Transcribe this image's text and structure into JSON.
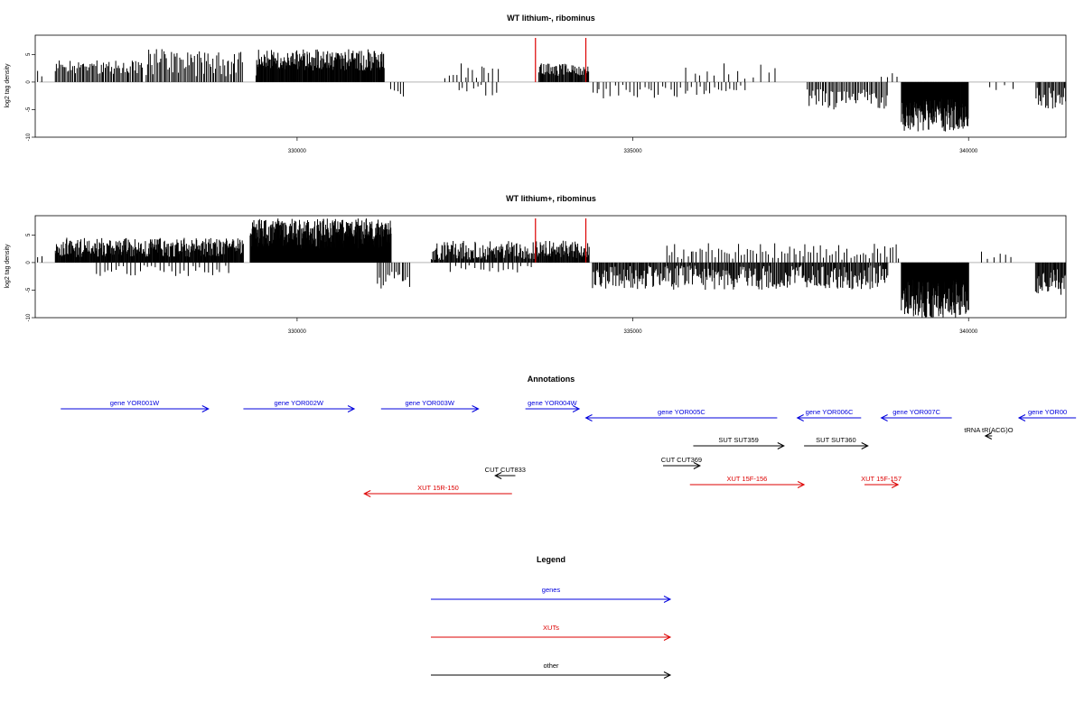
{
  "chart_data": [
    {
      "type": "bar",
      "title": "WT lithium-, ribominus",
      "ylabel": "log2 tag density",
      "xlim": [
        326100,
        341450
      ],
      "ylim": [
        -10,
        8.5
      ],
      "xticks": [
        330000,
        335000,
        340000
      ],
      "yticks": [
        -10,
        -5,
        0,
        5
      ],
      "ytick_labels": [
        "-10",
        "-5",
        "0",
        "5"
      ],
      "markers": [
        333550,
        334300
      ],
      "marker_color": "#dd0000",
      "bar_color": "#000000",
      "segments": [
        {
          "from": 326150,
          "to": 326200,
          "min": -2.5,
          "max": -1.0,
          "step": 50,
          "sign": -1
        },
        {
          "from": 326400,
          "to": 327700,
          "min": 1.5,
          "max": 4.0,
          "step": 20,
          "sign": 1
        },
        {
          "from": 327750,
          "to": 329200,
          "min": 1.0,
          "max": 6.0,
          "step": 22,
          "sign": 1
        },
        {
          "from": 329400,
          "to": 329500,
          "min": -2.0,
          "max": -1.0,
          "step": 40,
          "sign": -1
        },
        {
          "from": 329400,
          "to": 331300,
          "min": 2.0,
          "max": 6.0,
          "step": 9,
          "sign": 1
        },
        {
          "from": 331400,
          "to": 331600,
          "min": 1.0,
          "max": 3.0,
          "step": 45,
          "sign": -1
        },
        {
          "from": 332200,
          "to": 333000,
          "min": 0.5,
          "max": 3.5,
          "step": 60,
          "sign": 1
        },
        {
          "from": 332400,
          "to": 333000,
          "min": 0.5,
          "max": 2.5,
          "step": 70,
          "sign": -1
        },
        {
          "from": 333600,
          "to": 334350,
          "min": 1.0,
          "max": 3.5,
          "step": 12,
          "sign": 1
        },
        {
          "from": 334400,
          "to": 336700,
          "min": 0.5,
          "max": 3.0,
          "step": 55,
          "sign": -1
        },
        {
          "from": 335800,
          "to": 337200,
          "min": 0.5,
          "max": 3.5,
          "step": 110,
          "sign": 1
        },
        {
          "from": 337600,
          "to": 338800,
          "min": 1.0,
          "max": 5.0,
          "step": 22,
          "sign": -1
        },
        {
          "from": 338700,
          "to": 339000,
          "min": 0.5,
          "max": 2.0,
          "step": 80,
          "sign": 1
        },
        {
          "from": 339000,
          "to": 340000,
          "min": 3.0,
          "max": 9.0,
          "step": 6,
          "sign": -1
        },
        {
          "from": 340300,
          "to": 340700,
          "min": 0.5,
          "max": 1.5,
          "step": 120,
          "sign": -1
        },
        {
          "from": 341000,
          "to": 341450,
          "min": 1.0,
          "max": 5.0,
          "step": 18,
          "sign": -1
        }
      ]
    },
    {
      "type": "bar",
      "title": "WT lithium+, ribominus",
      "ylabel": "log2 tag density",
      "xlim": [
        326100,
        341450
      ],
      "ylim": [
        -10,
        8.5
      ],
      "xticks": [
        330000,
        335000,
        340000
      ],
      "yticks": [
        -10,
        -5,
        0,
        5
      ],
      "ytick_labels": [
        "-10",
        "-5",
        "0",
        "5"
      ],
      "markers": [
        333550,
        334300
      ],
      "marker_color": "#dd0000",
      "bar_color": "#000000",
      "segments": [
        {
          "from": 326150,
          "to": 326200,
          "min": -1.5,
          "max": -0.5,
          "step": 50,
          "sign": -1
        },
        {
          "from": 326400,
          "to": 329200,
          "min": 1.0,
          "max": 4.5,
          "step": 9,
          "sign": 1
        },
        {
          "from": 327000,
          "to": 329000,
          "min": 0.5,
          "max": 2.5,
          "step": 60,
          "sign": -1
        },
        {
          "from": 329300,
          "to": 331400,
          "min": 2.5,
          "max": 8.0,
          "step": 5,
          "sign": 1
        },
        {
          "from": 331200,
          "to": 331700,
          "min": 1.5,
          "max": 5.0,
          "step": 30,
          "sign": -1
        },
        {
          "from": 332000,
          "to": 333600,
          "min": 0.5,
          "max": 4.0,
          "step": 12,
          "sign": 1
        },
        {
          "from": 332300,
          "to": 333500,
          "min": 0.5,
          "max": 2.0,
          "step": 70,
          "sign": -1
        },
        {
          "from": 333600,
          "to": 334350,
          "min": 0.8,
          "max": 4.0,
          "step": 10,
          "sign": 1
        },
        {
          "from": 334400,
          "to": 338800,
          "min": 0.5,
          "max": 5.0,
          "step": 14,
          "sign": -1
        },
        {
          "from": 335500,
          "to": 339000,
          "min": 0.5,
          "max": 3.5,
          "step": 45,
          "sign": 1
        },
        {
          "from": 339000,
          "to": 340000,
          "min": 3.0,
          "max": 10.0,
          "step": 5,
          "sign": -1
        },
        {
          "from": 340200,
          "to": 340700,
          "min": 0.5,
          "max": 2.0,
          "step": 90,
          "sign": 1
        },
        {
          "from": 341000,
          "to": 341450,
          "min": 1.0,
          "max": 6.0,
          "step": 12,
          "sign": -1
        }
      ]
    }
  ],
  "annotations": {
    "title": "Annotations",
    "xlim": [
      326100,
      341450
    ],
    "colors": {
      "gene": "#0000dd",
      "xut": "#dd0000",
      "other": "#000000"
    },
    "items": [
      {
        "label": "gene YOR001W",
        "x1": 326480,
        "x2": 328680,
        "dir": 1,
        "row": 0,
        "kind": "gene"
      },
      {
        "label": "gene YOR002W",
        "x1": 329200,
        "x2": 330850,
        "dir": 1,
        "row": 0,
        "kind": "gene"
      },
      {
        "label": "gene YOR003W",
        "x1": 331250,
        "x2": 332700,
        "dir": 1,
        "row": 0,
        "kind": "gene"
      },
      {
        "label": "gene YOR004W",
        "x1": 333400,
        "x2": 334200,
        "dir": 1,
        "row": 0,
        "kind": "gene"
      },
      {
        "label": "gene YOR005C",
        "x1": 334300,
        "x2": 337150,
        "dir": -1,
        "row": 1,
        "kind": "gene"
      },
      {
        "label": "gene YOR006C",
        "x1": 337450,
        "x2": 338400,
        "dir": -1,
        "row": 1,
        "kind": "gene"
      },
      {
        "label": "gene YOR007C",
        "x1": 338700,
        "x2": 339750,
        "dir": -1,
        "row": 1,
        "kind": "gene"
      },
      {
        "label": "gene YOR00",
        "x1": 340750,
        "x2": 341600,
        "dir": -1,
        "row": 1,
        "kind": "gene"
      },
      {
        "label": "tRNA tR(ACG)O",
        "x1": 340250,
        "x2": 340350,
        "dir": -1,
        "row": 2,
        "kind": "other"
      },
      {
        "label": "SUT SUT359",
        "x1": 335900,
        "x2": 337250,
        "dir": 1,
        "row": 3,
        "kind": "other"
      },
      {
        "label": "SUT SUT360",
        "x1": 337550,
        "x2": 338500,
        "dir": 1,
        "row": 3,
        "kind": "other"
      },
      {
        "label": "CUT CUT369",
        "x1": 335450,
        "x2": 336000,
        "dir": 1,
        "row": 4,
        "kind": "other"
      },
      {
        "label": "CUT CUT833",
        "x1": 332950,
        "x2": 333250,
        "dir": -1,
        "row": 5,
        "kind": "other"
      },
      {
        "label": "XUT 15F-156",
        "x1": 335850,
        "x2": 337550,
        "dir": 1,
        "row": 6,
        "kind": "xut"
      },
      {
        "label": "XUT 15F-157",
        "x1": 338450,
        "x2": 338950,
        "dir": 1,
        "row": 6,
        "kind": "xut"
      },
      {
        "label": "XUT 15R-150",
        "x1": 331000,
        "x2": 333200,
        "dir": -1,
        "row": 7,
        "kind": "xut"
      }
    ]
  },
  "legend": {
    "title": "Legend",
    "items": [
      {
        "label": "genes",
        "color": "#0000dd"
      },
      {
        "label": "XUTs",
        "color": "#dd0000"
      },
      {
        "label": "other",
        "color": "#000000"
      }
    ]
  }
}
